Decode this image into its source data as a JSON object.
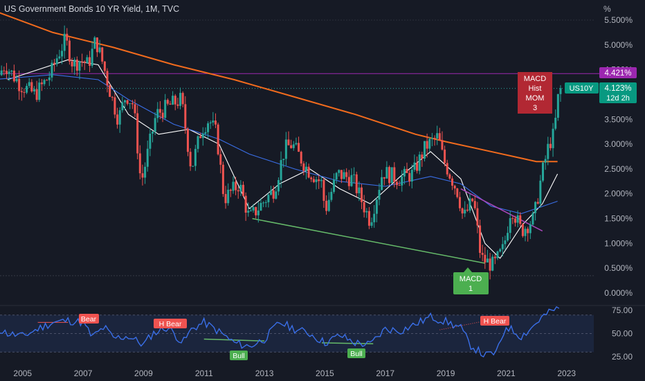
{
  "header": {
    "title": "US Government Bonds 10 YR Yield, 1M, TVC",
    "unit_label": "%"
  },
  "colors": {
    "background": "#161a25",
    "up": "#26a69a",
    "down": "#ef5350",
    "ma_white": "#ffffff",
    "ma_blue": "#3a6fe8",
    "ma_orange": "#f26b1d",
    "level_line": "#9c27b0",
    "rsi_line": "#3a6fe8",
    "rsi_band": "#1e2a45"
  },
  "badges": {
    "level_label": "4.421%",
    "ticker": "US10Y",
    "price": "4.123%",
    "countdown": "12d 2h"
  },
  "annotations": {
    "macd_bear": [
      "MACD",
      "Hist",
      "MOM",
      "3"
    ],
    "macd_bull": [
      "MACD",
      "1"
    ],
    "rsi_labels": [
      "Bear",
      "H Bear",
      "Bull",
      "Bull",
      "H Bear"
    ]
  },
  "chart_data": [
    {
      "type": "candlestick",
      "title": "US Government Bonds 10 YR Yield, 1M, TVC",
      "x_ticks": [
        "2005",
        "2007",
        "2009",
        "2011",
        "2013",
        "2015",
        "2017",
        "2019",
        "2021",
        "2023"
      ],
      "y_ticks": [
        "5.500%",
        "5.000%",
        "4.500%",
        "4.000%",
        "3.500%",
        "3.000%",
        "2.500%",
        "2.000%",
        "1.500%",
        "1.000%",
        "0.500%",
        "0.000%"
      ],
      "ylim": [
        -0.1,
        5.6
      ],
      "grid": false,
      "horizontal_level": 4.421,
      "last_price": 4.123,
      "path_points": [
        [
          "2004-01",
          4.2
        ],
        [
          "2004-06",
          4.6
        ],
        [
          "2004-12",
          4.2
        ],
        [
          "2005-06",
          4.0
        ],
        [
          "2005-12",
          4.4
        ],
        [
          "2006-03",
          4.8
        ],
        [
          "2006-06",
          5.1
        ],
        [
          "2006-09",
          4.6
        ],
        [
          "2006-12",
          4.7
        ],
        [
          "2007-03",
          4.6
        ],
        [
          "2007-06",
          5.1
        ],
        [
          "2007-09",
          4.6
        ],
        [
          "2007-12",
          4.0
        ],
        [
          "2008-03",
          3.5
        ],
        [
          "2008-06",
          4.0
        ],
        [
          "2008-09",
          3.8
        ],
        [
          "2008-12",
          2.2
        ],
        [
          "2009-06",
          3.6
        ],
        [
          "2009-12",
          3.8
        ],
        [
          "2010-04",
          3.9
        ],
        [
          "2010-08",
          2.5
        ],
        [
          "2010-12",
          3.3
        ],
        [
          "2011-03",
          3.5
        ],
        [
          "2011-06",
          3.2
        ],
        [
          "2011-09",
          1.9
        ],
        [
          "2012-03",
          2.2
        ],
        [
          "2012-07",
          1.5
        ],
        [
          "2012-12",
          1.8
        ],
        [
          "2013-05",
          2.1
        ],
        [
          "2013-09",
          2.9
        ],
        [
          "2013-12",
          3.0
        ],
        [
          "2014-06",
          2.5
        ],
        [
          "2014-12",
          2.2
        ],
        [
          "2015-01",
          1.65
        ],
        [
          "2015-06",
          2.4
        ],
        [
          "2015-12",
          2.3
        ],
        [
          "2016-07",
          1.45
        ],
        [
          "2016-12",
          2.45
        ],
        [
          "2017-06",
          2.3
        ],
        [
          "2017-12",
          2.4
        ],
        [
          "2018-05",
          2.95
        ],
        [
          "2018-10",
          3.15
        ],
        [
          "2018-12",
          2.7
        ],
        [
          "2019-06",
          2.0
        ],
        [
          "2019-08",
          1.5
        ],
        [
          "2019-12",
          1.9
        ],
        [
          "2020-03",
          0.7
        ],
        [
          "2020-08",
          0.55
        ],
        [
          "2020-12",
          0.9
        ],
        [
          "2021-03",
          1.75
        ],
        [
          "2021-07",
          1.25
        ],
        [
          "2021-12",
          1.5
        ],
        [
          "2022-03",
          2.35
        ],
        [
          "2022-06",
          3.0
        ],
        [
          "2022-08",
          3.2
        ],
        [
          "2022-10",
          4.1
        ]
      ],
      "series": [
        {
          "values": [
            [
              2004.5,
              4.3
            ],
            [
              2006.5,
              4.7
            ],
            [
              2007.5,
              4.6
            ],
            [
              2008.5,
              3.6
            ],
            [
              2009.5,
              3.2
            ],
            [
              2010.5,
              3.3
            ],
            [
              2011.5,
              3.0
            ],
            [
              2012.5,
              1.7
            ],
            [
              2013.5,
              2.2
            ],
            [
              2014.5,
              2.5
            ],
            [
              2015.5,
              2.1
            ],
            [
              2016.5,
              1.8
            ],
            [
              2017.5,
              2.35
            ],
            [
              2018.5,
              2.85
            ],
            [
              2019.5,
              2.3
            ],
            [
              2020.3,
              1.0
            ],
            [
              2020.8,
              0.7
            ],
            [
              2021.5,
              1.35
            ],
            [
              2022.2,
              1.8
            ],
            [
              2022.7,
              2.4
            ]
          ]
        },
        {
          "values": [
            [
              2004,
              4.3
            ],
            [
              2006,
              4.4
            ],
            [
              2007.5,
              4.3
            ],
            [
              2008.5,
              3.9
            ],
            [
              2010,
              3.4
            ],
            [
              2011.5,
              3.1
            ],
            [
              2012.5,
              2.8
            ],
            [
              2014,
              2.5
            ],
            [
              2015.5,
              2.25
            ],
            [
              2017,
              2.15
            ],
            [
              2018.5,
              2.35
            ],
            [
              2019.5,
              2.2
            ],
            [
              2020.5,
              1.75
            ],
            [
              2021.5,
              1.6
            ],
            [
              2022.7,
              1.85
            ]
          ]
        },
        {
          "values": [
            [
              2004,
              5.7
            ],
            [
              2006,
              5.25
            ],
            [
              2008,
              4.95
            ],
            [
              2010,
              4.6
            ],
            [
              2012,
              4.3
            ],
            [
              2014,
              3.95
            ],
            [
              2016,
              3.6
            ],
            [
              2018,
              3.2
            ],
            [
              2019,
              3.05
            ],
            [
              2020.5,
              2.85
            ],
            [
              2022,
              2.65
            ],
            [
              2022.7,
              2.65
            ]
          ]
        }
      ],
      "trendlines": [
        {
          "from": [
            2012.6,
            1.5
          ],
          "to": [
            2020.3,
            0.6
          ]
        },
        {
          "from": [
            2019.5,
            2.1
          ],
          "to": [
            2022.2,
            1.25
          ]
        }
      ]
    },
    {
      "type": "line",
      "y_ticks": [
        "75.00",
        "50.00",
        "25.00"
      ],
      "ylim": [
        20,
        80
      ],
      "band": [
        30,
        70
      ],
      "x": [
        2004.0,
        2004.5,
        2005.0,
        2005.5,
        2006.0,
        2006.5,
        2007.0,
        2007.3,
        2007.7,
        2008.0,
        2008.5,
        2009.0,
        2009.3,
        2009.8,
        2010.3,
        2010.6,
        2011.0,
        2011.5,
        2012.0,
        2012.5,
        2013.0,
        2013.5,
        2014.0,
        2014.5,
        2015.0,
        2015.5,
        2016.0,
        2016.5,
        2017.0,
        2017.5,
        2018.0,
        2018.5,
        2019.0,
        2019.5,
        2019.8,
        2020.3,
        2020.7,
        2021.0,
        2021.5,
        2021.8,
        2022.2,
        2022.6,
        2022.8
      ],
      "y": [
        58,
        50,
        47,
        55,
        62,
        64,
        62,
        46,
        57,
        45,
        47,
        38,
        50,
        57,
        40,
        55,
        62,
        52,
        40,
        36,
        44,
        62,
        55,
        50,
        40,
        48,
        40,
        38,
        55,
        53,
        60,
        68,
        63,
        56,
        38,
        26,
        30,
        58,
        47,
        55,
        68,
        76,
        76
      ]
    }
  ]
}
